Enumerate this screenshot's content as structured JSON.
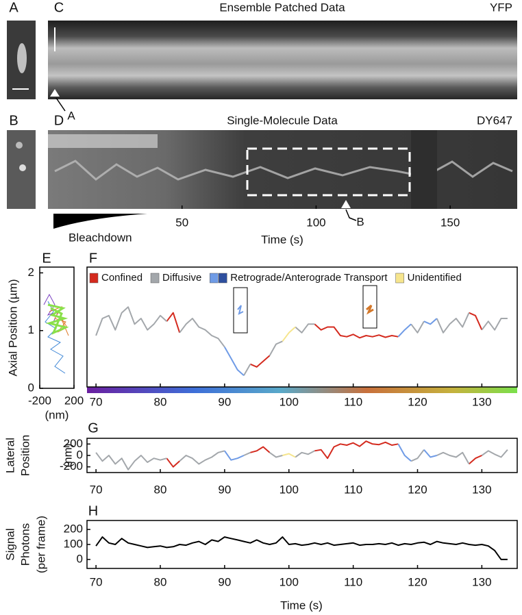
{
  "panel_labels": [
    "A",
    "B",
    "C",
    "D",
    "E",
    "F",
    "G",
    "H"
  ],
  "chart_data": [
    {
      "type": "image",
      "title": "Ensemble Patched Data",
      "channel": "YFP",
      "marker": "A"
    },
    {
      "type": "image",
      "title": "Single-Molecule Data",
      "channel": "DY647",
      "marker": "B",
      "annotation": "Bleachdown",
      "xlabel": "Time (s)",
      "xlim": [
        0,
        175
      ],
      "xticks": [
        50,
        100,
        150
      ]
    },
    {
      "type": "trajectory",
      "ylabel": "Axial Position (µm)",
      "xlabel": "(nm)",
      "xlim": [
        -200,
        200
      ],
      "xticks": [
        -200,
        200
      ],
      "ylim": [
        0,
        2.1
      ],
      "yticks": [
        0,
        1,
        2
      ]
    },
    {
      "type": "line",
      "xlim": [
        68.6,
        135.5
      ],
      "xticks": [
        70,
        80,
        90,
        100,
        110,
        120,
        130
      ],
      "ylim": [
        0,
        2.1
      ],
      "x": [
        70,
        71,
        72,
        73,
        74,
        75,
        76,
        77,
        78,
        79,
        80,
        81,
        82,
        83,
        84,
        85,
        86,
        87,
        88,
        89,
        90,
        91,
        92,
        93,
        94,
        95,
        96,
        97,
        98,
        99,
        100,
        101,
        102,
        103,
        104,
        105,
        106,
        107,
        108,
        109,
        110,
        111,
        112,
        113,
        114,
        115,
        116,
        117,
        118,
        119,
        120,
        121,
        122,
        123,
        124,
        125,
        126,
        127,
        128,
        129,
        130,
        131,
        132,
        133,
        134
      ],
      "series": [
        {
          "name": "Confined",
          "color": "#d42a1e",
          "values": [
            null,
            null,
            null,
            null,
            null,
            null,
            null,
            null,
            null,
            null,
            null,
            1.15,
            1.3,
            0.95,
            null,
            null,
            null,
            null,
            null,
            null,
            null,
            null,
            null,
            null,
            0.4,
            0.35,
            0.45,
            0.55,
            null,
            null,
            null,
            null,
            null,
            null,
            1.1,
            1.0,
            1.05,
            1.05,
            0.9,
            0.88,
            0.92,
            0.86,
            0.9,
            0.88,
            0.91,
            0.87,
            0.9,
            0.88,
            null,
            null,
            null,
            null,
            null,
            null,
            null,
            null,
            null,
            null,
            1.3,
            1.25,
            1.0,
            null,
            null,
            null,
            null
          ]
        },
        {
          "name": "Diffusive",
          "color": "#a3a7ab",
          "values": [
            0.9,
            1.2,
            1.25,
            1.0,
            1.3,
            1.4,
            1.1,
            1.2,
            1.0,
            1.1,
            1.25,
            1.15,
            null,
            0.95,
            1.1,
            1.2,
            1.05,
            1.0,
            0.9,
            0.85,
            0.7,
            null,
            null,
            0.2,
            0.4,
            null,
            null,
            0.55,
            0.75,
            0.8,
            null,
            1.05,
            0.95,
            1.1,
            1.1,
            null,
            null,
            null,
            null,
            null,
            null,
            null,
            null,
            null,
            null,
            null,
            null,
            null,
            null,
            1.1,
            0.95,
            1.15,
            null,
            1.2,
            0.95,
            1.1,
            1.2,
            1.05,
            1.3,
            null,
            1.0,
            1.15,
            1.0,
            1.2,
            1.2
          ]
        },
        {
          "name": "Retrograde/Anterograde Transport",
          "color": "#6f9be6",
          "colors": [
            "#6f9be6",
            "#2e4f9e"
          ],
          "values": [
            null,
            null,
            null,
            null,
            null,
            null,
            null,
            null,
            null,
            null,
            null,
            null,
            null,
            null,
            null,
            null,
            null,
            null,
            null,
            null,
            0.7,
            0.5,
            0.3,
            0.2,
            null,
            null,
            null,
            null,
            null,
            null,
            null,
            null,
            null,
            null,
            null,
            null,
            null,
            null,
            null,
            null,
            null,
            null,
            null,
            null,
            null,
            null,
            null,
            0.88,
            1.0,
            1.1,
            null,
            1.15,
            1.1,
            1.2,
            null,
            null,
            null,
            null,
            null,
            null,
            null,
            null,
            null,
            null,
            null
          ]
        },
        {
          "name": "Unidentified",
          "color": "#f6e58d",
          "values": [
            null,
            null,
            null,
            null,
            null,
            null,
            null,
            null,
            null,
            null,
            null,
            null,
            null,
            null,
            null,
            null,
            null,
            null,
            null,
            null,
            null,
            null,
            null,
            null,
            null,
            null,
            null,
            null,
            null,
            0.8,
            0.95,
            1.05,
            null,
            null,
            null,
            null,
            null,
            null,
            null,
            null,
            null,
            null,
            null,
            null,
            null,
            null,
            null,
            null,
            null,
            null,
            null,
            null,
            null,
            null,
            null,
            null,
            null,
            null,
            null,
            null,
            null,
            null,
            null,
            null,
            null
          ]
        }
      ]
    },
    {
      "type": "line",
      "ylabel": [
        "Lateral",
        "Position",
        "(nm)"
      ],
      "xlim": [
        68.6,
        135.5
      ],
      "xticks": [
        70,
        80,
        90,
        100,
        110,
        120,
        130
      ],
      "ylim": [
        -300,
        300
      ],
      "yticks": [
        -200,
        0,
        200
      ],
      "x": [
        70,
        71,
        72,
        73,
        74,
        75,
        76,
        77,
        78,
        79,
        80,
        81,
        82,
        83,
        84,
        85,
        86,
        87,
        88,
        89,
        90,
        91,
        92,
        93,
        94,
        95,
        96,
        97,
        98,
        99,
        100,
        101,
        102,
        103,
        104,
        105,
        106,
        107,
        108,
        109,
        110,
        111,
        112,
        113,
        114,
        115,
        116,
        117,
        118,
        119,
        120,
        121,
        122,
        123,
        124,
        125,
        126,
        127,
        128,
        129,
        130,
        131,
        132,
        133,
        134
      ],
      "series": [
        {
          "color": "#d42a1e",
          "values": [
            null,
            null,
            null,
            null,
            null,
            null,
            null,
            null,
            null,
            null,
            null,
            -50,
            -200,
            -100,
            null,
            null,
            null,
            null,
            null,
            null,
            null,
            null,
            null,
            null,
            50,
            80,
            150,
            50,
            null,
            null,
            null,
            null,
            null,
            null,
            80,
            100,
            -50,
            150,
            200,
            180,
            220,
            160,
            250,
            200,
            190,
            230,
            180,
            200,
            null,
            null,
            null,
            null,
            null,
            null,
            null,
            null,
            null,
            null,
            -150,
            -50,
            0,
            null,
            null,
            null,
            null
          ]
        },
        {
          "color": "#a3a7ab",
          "values": [
            50,
            -100,
            0,
            -150,
            -50,
            -250,
            -100,
            0,
            -120,
            -50,
            -80,
            -50,
            null,
            -100,
            0,
            -50,
            -150,
            -80,
            -30,
            50,
            80,
            null,
            null,
            0,
            50,
            null,
            null,
            50,
            -30,
            0,
            null,
            -30,
            50,
            20,
            80,
            null,
            null,
            null,
            null,
            null,
            null,
            null,
            null,
            null,
            null,
            null,
            null,
            null,
            null,
            -100,
            -50,
            100,
            null,
            0,
            50,
            0,
            -30,
            50,
            -150,
            null,
            0,
            80,
            20,
            -30,
            100
          ]
        },
        {
          "color": "#6f9be6",
          "values": [
            null,
            null,
            null,
            null,
            null,
            null,
            null,
            null,
            null,
            null,
            null,
            null,
            null,
            null,
            null,
            null,
            null,
            null,
            null,
            null,
            80,
            -80,
            -50,
            0,
            null,
            null,
            null,
            null,
            null,
            null,
            null,
            null,
            null,
            null,
            null,
            null,
            null,
            null,
            null,
            null,
            null,
            null,
            null,
            null,
            null,
            null,
            null,
            200,
            0,
            -100,
            null,
            100,
            -30,
            0,
            null,
            null,
            null,
            null,
            null,
            null,
            null,
            null,
            null,
            null,
            null
          ]
        },
        {
          "color": "#f6e58d",
          "values": [
            null,
            null,
            null,
            null,
            null,
            null,
            null,
            null,
            null,
            null,
            null,
            null,
            null,
            null,
            null,
            null,
            null,
            null,
            null,
            null,
            null,
            null,
            null,
            null,
            null,
            null,
            null,
            null,
            null,
            0,
            30,
            -30,
            null,
            null,
            null,
            null,
            null,
            null,
            null,
            null,
            null,
            null,
            null,
            null,
            null,
            null,
            null,
            null,
            null,
            null,
            null,
            null,
            null,
            null,
            null,
            null,
            null,
            null,
            null,
            null,
            null,
            null,
            null,
            null,
            null
          ]
        }
      ]
    },
    {
      "type": "line",
      "ylabel": [
        "Signal",
        "Photons",
        "(per frame)"
      ],
      "xlabel": "Time (s)",
      "xlim": [
        68.6,
        135.5
      ],
      "xticks": [
        70,
        80,
        90,
        100,
        110,
        120,
        130
      ],
      "ylim": [
        -60,
        260
      ],
      "yticks": [
        0,
        100,
        200
      ],
      "x": [
        70,
        71,
        72,
        73,
        74,
        75,
        76,
        77,
        78,
        79,
        80,
        81,
        82,
        83,
        84,
        85,
        86,
        87,
        88,
        89,
        90,
        91,
        92,
        93,
        94,
        95,
        96,
        97,
        98,
        99,
        100,
        101,
        102,
        103,
        104,
        105,
        106,
        107,
        108,
        109,
        110,
        111,
        112,
        113,
        114,
        115,
        116,
        117,
        118,
        119,
        120,
        121,
        122,
        123,
        124,
        125,
        126,
        127,
        128,
        129,
        130,
        131,
        132,
        133,
        134
      ],
      "series": [
        {
          "color": "#000000",
          "values": [
            90,
            150,
            110,
            100,
            140,
            110,
            100,
            90,
            80,
            85,
            90,
            80,
            85,
            100,
            95,
            110,
            120,
            100,
            130,
            120,
            150,
            140,
            130,
            120,
            110,
            130,
            110,
            100,
            110,
            150,
            100,
            105,
            95,
            100,
            110,
            100,
            110,
            95,
            100,
            105,
            110,
            95,
            100,
            100,
            105,
            100,
            110,
            95,
            105,
            100,
            110,
            115,
            100,
            120,
            110,
            105,
            100,
            110,
            100,
            95,
            100,
            90,
            60,
            0,
            0
          ]
        }
      ]
    }
  ]
}
